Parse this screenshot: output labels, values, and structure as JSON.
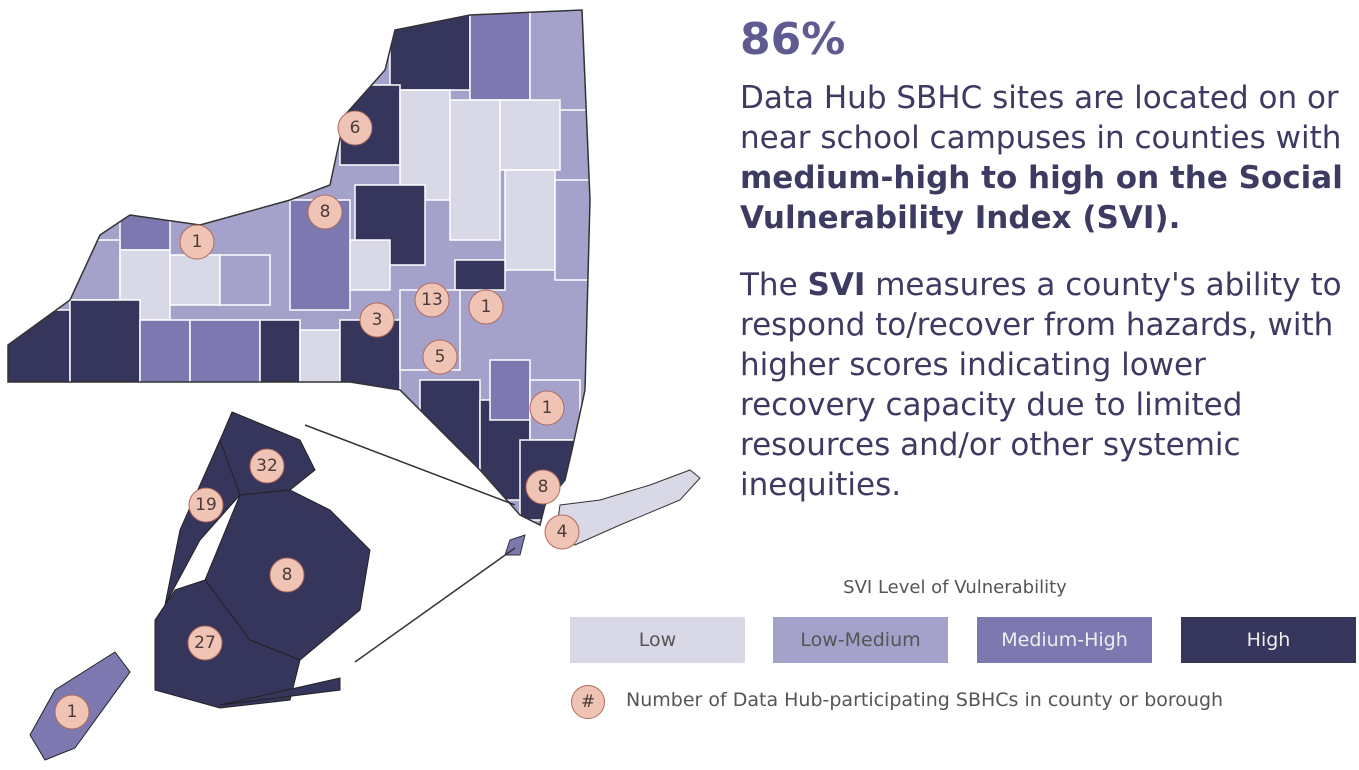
{
  "headline": "86%",
  "paragraphs": [
    [
      {
        "text": "Data Hub SBHC sites are located on or near school campuses in counties with "
      },
      {
        "text": "medium-high to high on the Social Vulnerability Index (SVI).",
        "bold": true
      }
    ],
    [
      {
        "text": "The "
      },
      {
        "text": "SVI",
        "bold": true
      },
      {
        "text": " measures a county's ability to respond to/recover from hazards, with higher scores indicating lower recovery capacity due to limited resources and/or other systemic inequities."
      }
    ]
  ],
  "legend": {
    "title": "SVI Level of Vulnerability",
    "items": [
      {
        "label": "Low",
        "color": "#d8d8e6"
      },
      {
        "label": "Low-Medium",
        "color": "#a4a2cb"
      },
      {
        "label": "Medium-High",
        "color": "#7d79b0"
      },
      {
        "label": "High",
        "color": "#36355c"
      }
    ],
    "marker_symbol": "#",
    "marker_note": "Number of Data Hub-participating SBHCs in county or borough"
  },
  "map": {
    "markers": [
      6,
      8,
      1,
      13,
      1,
      3,
      5,
      1,
      8,
      4,
      32,
      19,
      8,
      27,
      1
    ]
  }
}
